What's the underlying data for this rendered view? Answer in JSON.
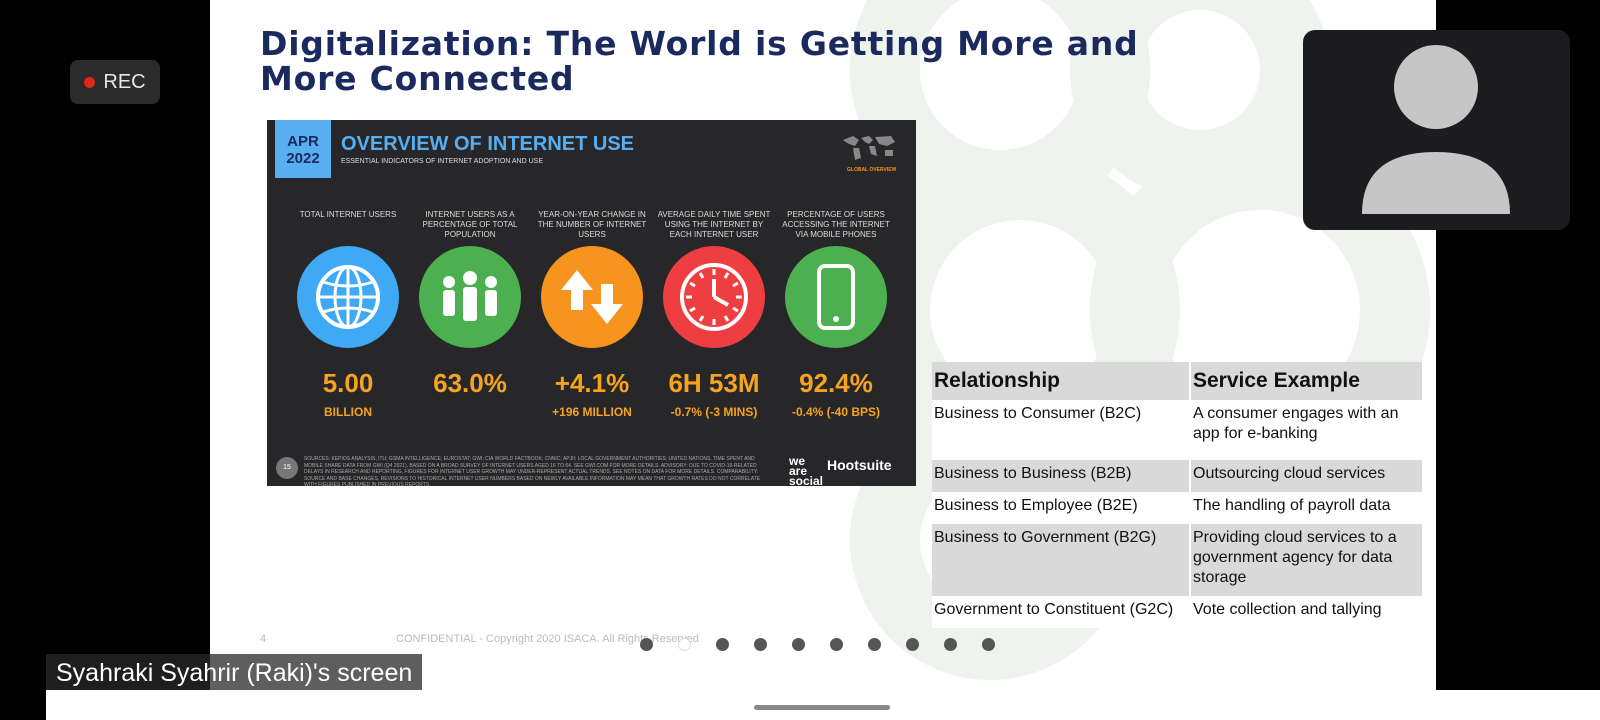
{
  "recording": {
    "label": "REC"
  },
  "slide": {
    "title": "Digitalization: The World is Getting More and More Connected",
    "page_number": "4",
    "footer": "CONFIDENTIAL - Copyright 2020 ISACA. All Rights Reserved",
    "dots_count": 10,
    "active_dot": 1
  },
  "infographic": {
    "date_line1": "APR",
    "date_line2": "2022",
    "title": "OVERVIEW OF INTERNET USE",
    "subtitle": "ESSENTIAL INDICATORS OF INTERNET ADOPTION AND USE",
    "tag": "GLOBAL OVERVIEW",
    "metrics": [
      {
        "label": "TOTAL INTERNET USERS",
        "value": "5.00",
        "sub": "BILLION",
        "icon": "globe-icon",
        "color": "#3fa9f5"
      },
      {
        "label": "INTERNET USERS AS A PERCENTAGE OF TOTAL POPULATION",
        "value": "63.0%",
        "sub": "",
        "icon": "people-icon",
        "color": "#4caf50"
      },
      {
        "label": "YEAR-ON-YEAR CHANGE IN THE NUMBER OF INTERNET USERS",
        "value": "+4.1%",
        "sub": "+196 MILLION",
        "icon": "arrows-icon",
        "color": "#f7941d"
      },
      {
        "label": "AVERAGE DAILY TIME SPENT USING THE INTERNET BY EACH INTERNET USER",
        "value": "6H 53M",
        "sub": "-0.7% (-3 MINS)",
        "icon": "clock-icon",
        "color": "#ef3e42"
      },
      {
        "label": "PERCENTAGE OF USERS ACCESSING THE INTERNET VIA MOBILE PHONES",
        "value": "92.4%",
        "sub": "-0.4% (-40 BPS)",
        "icon": "phone-icon",
        "color": "#4caf50"
      }
    ],
    "footer_number": "15",
    "footer_text": "SOURCES: KEPIOS ANALYSIS; ITU; GSMA INTELLIGENCE; EUROSTAT; GWI; CIA WORLD FACTBOOK; CNNIC; APJII; LOCAL GOVERNMENT AUTHORITIES; UNITED NATIONS. TIME SPENT AND MOBILE SHARE DATA FROM GWI (Q4 2021), BASED ON A BROAD SURVEY OF INTERNET USERS AGED 16 TO 64. SEE GWI.COM FOR MORE DETAILS. ADVISORY: DUE TO COVID-19-RELATED DELAYS IN RESEARCH AND REPORTING, FIGURES FOR INTERNET USER GROWTH MAY UNDER-REPRESENT ACTUAL TRENDS. SEE NOTES ON DATA FOR MORE DETAILS. COMPARABILITY: SOURCE AND BASE CHANGES. REVISIONS TO HISTORICAL INTERNET USER NUMBERS BASED ON NEWLY AVAILABLE INFORMATION MAY MEAN THAT GROWTH RATES DO NOT CORRELATE WITH FIGURES PUBLISHED IN PREVIOUS REPORTS.",
    "brand1": "we are social",
    "brand2": "Hootsuite"
  },
  "table": {
    "headers": [
      "Relationship",
      "Service Example"
    ],
    "rows": [
      [
        "Business to Consumer (B2C)",
        "A consumer engages with an app for e-banking"
      ],
      [
        "Business to Business (B2B)",
        "Outsourcing cloud services"
      ],
      [
        "Business to Employee (B2E)",
        "The handling of payroll data"
      ],
      [
        "Business to Government (B2G)",
        "Providing cloud services to a government agency for data storage"
      ],
      [
        "Government to Constituent (G2C)",
        "Vote collection and tallying"
      ]
    ]
  },
  "participant": {
    "avatar": "person-avatar-icon"
  },
  "screen_label": "Syahraki Syahrir (Raki)'s screen"
}
